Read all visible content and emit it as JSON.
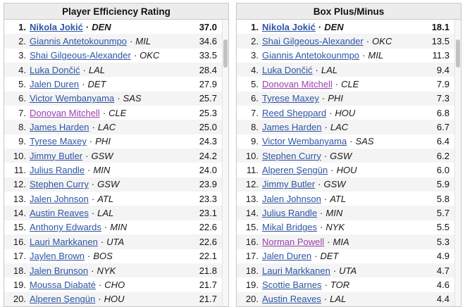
{
  "separator": "·",
  "colors": {
    "link": "#2f55a4",
    "visited": "#9a3fae",
    "header_bg": "#ececec",
    "row_alt": "#f4f4f4",
    "border": "#c8c8c8"
  },
  "tables": [
    {
      "title": "Player Efficiency Rating",
      "rows": [
        {
          "rank": "1.",
          "player": "Nikola Jokić",
          "team": "DEN",
          "value": "37.0",
          "bold": true
        },
        {
          "rank": "2.",
          "player": "Giannis Antetokounmpo",
          "team": "MIL",
          "value": "34.6"
        },
        {
          "rank": "3.",
          "player": "Shai Gilgeous-Alexander",
          "team": "OKC",
          "value": "33.5"
        },
        {
          "rank": "4.",
          "player": "Luka Dončić",
          "team": "LAL",
          "value": "28.4"
        },
        {
          "rank": "5.",
          "player": "Jalen Duren",
          "team": "DET",
          "value": "27.9"
        },
        {
          "rank": "6.",
          "player": "Victor Wembanyama",
          "team": "SAS",
          "value": "25.7"
        },
        {
          "rank": "7.",
          "player": "Donovan Mitchell",
          "team": "CLE",
          "value": "25.3",
          "visited": true
        },
        {
          "rank": "8.",
          "player": "James Harden",
          "team": "LAC",
          "value": "25.0"
        },
        {
          "rank": "9.",
          "player": "Tyrese Maxey",
          "team": "PHI",
          "value": "24.3"
        },
        {
          "rank": "10.",
          "player": "Jimmy Butler",
          "team": "GSW",
          "value": "24.2"
        },
        {
          "rank": "11.",
          "player": "Julius Randle",
          "team": "MIN",
          "value": "24.0"
        },
        {
          "rank": "12.",
          "player": "Stephen Curry",
          "team": "GSW",
          "value": "23.9"
        },
        {
          "rank": "13.",
          "player": "Jalen Johnson",
          "team": "ATL",
          "value": "23.3"
        },
        {
          "rank": "14.",
          "player": "Austin Reaves",
          "team": "LAL",
          "value": "23.1"
        },
        {
          "rank": "15.",
          "player": "Anthony Edwards",
          "team": "MIN",
          "value": "22.6"
        },
        {
          "rank": "16.",
          "player": "Lauri Markkanen",
          "team": "UTA",
          "value": "22.6"
        },
        {
          "rank": "17.",
          "player": "Jaylen Brown",
          "team": "BOS",
          "value": "22.1"
        },
        {
          "rank": "18.",
          "player": "Jalen Brunson",
          "team": "NYK",
          "value": "21.8"
        },
        {
          "rank": "19.",
          "player": "Moussa Diabaté",
          "team": "CHO",
          "value": "21.7"
        },
        {
          "rank": "20.",
          "player": "Alperen Şengün",
          "team": "HOU",
          "value": "21.7"
        }
      ]
    },
    {
      "title": "Box Plus/Minus",
      "rows": [
        {
          "rank": "1.",
          "player": "Nikola Jokić",
          "team": "DEN",
          "value": "18.1",
          "bold": true
        },
        {
          "rank": "2.",
          "player": "Shai Gilgeous-Alexander",
          "team": "OKC",
          "value": "13.5"
        },
        {
          "rank": "3.",
          "player": "Giannis Antetokounmpo",
          "team": "MIL",
          "value": "11.3"
        },
        {
          "rank": "4.",
          "player": "Luka Dončić",
          "team": "LAL",
          "value": "9.4"
        },
        {
          "rank": "5.",
          "player": "Donovan Mitchell",
          "team": "CLE",
          "value": "7.9",
          "visited": true
        },
        {
          "rank": "6.",
          "player": "Tyrese Maxey",
          "team": "PHI",
          "value": "7.3"
        },
        {
          "rank": "7.",
          "player": "Reed Sheppard",
          "team": "HOU",
          "value": "6.8"
        },
        {
          "rank": "8.",
          "player": "James Harden",
          "team": "LAC",
          "value": "6.7"
        },
        {
          "rank": "9.",
          "player": "Victor Wembanyama",
          "team": "SAS",
          "value": "6.4"
        },
        {
          "rank": "10.",
          "player": "Stephen Curry",
          "team": "GSW",
          "value": "6.2"
        },
        {
          "rank": "11.",
          "player": "Alperen Şengün",
          "team": "HOU",
          "value": "6.0"
        },
        {
          "rank": "12.",
          "player": "Jimmy Butler",
          "team": "GSW",
          "value": "5.9"
        },
        {
          "rank": "13.",
          "player": "Jalen Johnson",
          "team": "ATL",
          "value": "5.8"
        },
        {
          "rank": "14.",
          "player": "Julius Randle",
          "team": "MIN",
          "value": "5.7"
        },
        {
          "rank": "15.",
          "player": "Mikal Bridges",
          "team": "NYK",
          "value": "5.5"
        },
        {
          "rank": "16.",
          "player": "Norman Powell",
          "team": "MIA",
          "value": "5.3",
          "visited": true
        },
        {
          "rank": "17.",
          "player": "Jalen Duren",
          "team": "DET",
          "value": "4.9"
        },
        {
          "rank": "18.",
          "player": "Lauri Markkanen",
          "team": "UTA",
          "value": "4.7"
        },
        {
          "rank": "19.",
          "player": "Scottie Barnes",
          "team": "TOR",
          "value": "4.6"
        },
        {
          "rank": "20.",
          "player": "Austin Reaves",
          "team": "LAL",
          "value": "4.4"
        }
      ]
    }
  ]
}
